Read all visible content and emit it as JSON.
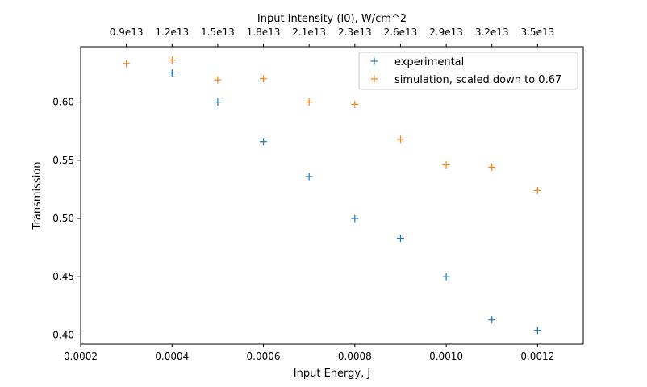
{
  "chart_data": {
    "type": "scatter",
    "xlabel": "Input Energy, J",
    "ylabel": "Transmission",
    "top_xlabel": "Input Intensity (I0), W/cm^2",
    "xlim": [
      0.0002,
      0.0013
    ],
    "ylim": [
      0.392,
      0.6475
    ],
    "x_ticks": [
      0.0002,
      0.0004,
      0.0006,
      0.0008,
      0.001,
      0.0012
    ],
    "x_tick_labels": [
      "0.0002",
      "0.0004",
      "0.0006",
      "0.0008",
      "0.0010",
      "0.0012"
    ],
    "y_ticks": [
      0.4,
      0.45,
      0.5,
      0.55,
      0.6
    ],
    "y_tick_labels": [
      "0.40",
      "0.45",
      "0.50",
      "0.55",
      "0.60"
    ],
    "top_ticks": [
      0.0003,
      0.0004,
      0.0005,
      0.0006,
      0.0007,
      0.0008,
      0.0009,
      0.001,
      0.0011,
      0.0012
    ],
    "top_tick_labels": [
      "0.9e13",
      "1.2e13",
      "1.5e13",
      "1.8e13",
      "2.1e13",
      "2.3e13",
      "2.6e13",
      "2.9e13",
      "3.2e13",
      "3.5e13"
    ],
    "legend_position": "top-right",
    "grid": false,
    "marker": "+",
    "series": [
      {
        "name": "experimental",
        "color": "#1f77b4",
        "x": [
          0.0003,
          0.0004,
          0.0005,
          0.0006,
          0.0007,
          0.0008,
          0.0009,
          0.001,
          0.0011,
          0.0012
        ],
        "y": [
          0.633,
          0.625,
          0.6,
          0.566,
          0.536,
          0.5,
          0.483,
          0.45,
          0.413,
          0.404
        ]
      },
      {
        "name": "simulation, scaled down to 0.67",
        "color": "#ff7f0e",
        "x": [
          0.0003,
          0.0004,
          0.0005,
          0.0006,
          0.0007,
          0.0008,
          0.0009,
          0.001,
          0.0011,
          0.0012
        ],
        "y": [
          0.633,
          0.636,
          0.619,
          0.62,
          0.6,
          0.598,
          0.568,
          0.546,
          0.544,
          0.524
        ]
      }
    ]
  }
}
